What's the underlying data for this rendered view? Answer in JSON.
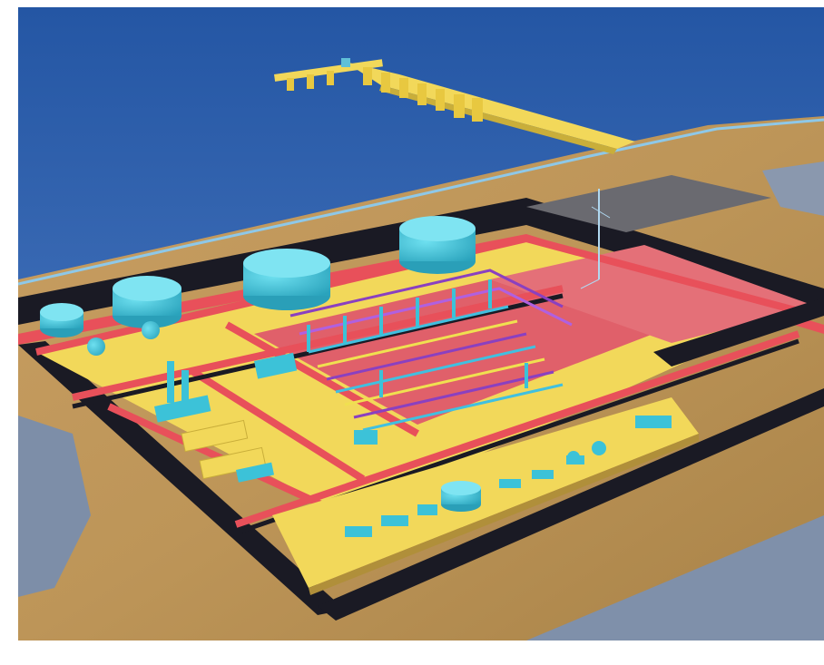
{
  "image": {
    "colors": {
      "page_background": "#ffffff",
      "sea": "#2a5aa8",
      "sea_dark": "#204a94",
      "terrain": "#c8a060",
      "terrain_shadow": "#b08850",
      "lowland": "#7f8fa8",
      "slab": "#f2d85a",
      "road": "#e8505a",
      "roadway_dark": "#1a1a24",
      "tank": "#3cc2d8",
      "tank_shade": "#2a9fb8",
      "pipe_rack": "#8a40c0",
      "pad_pink": "#e0606a",
      "grey_lot": "#6a6a6a"
    },
    "icons": [
      "storage-tank-icon",
      "spherical-tank-icon",
      "pipe-rack-icon",
      "jetty-icon",
      "flare-stack-icon"
    ]
  }
}
